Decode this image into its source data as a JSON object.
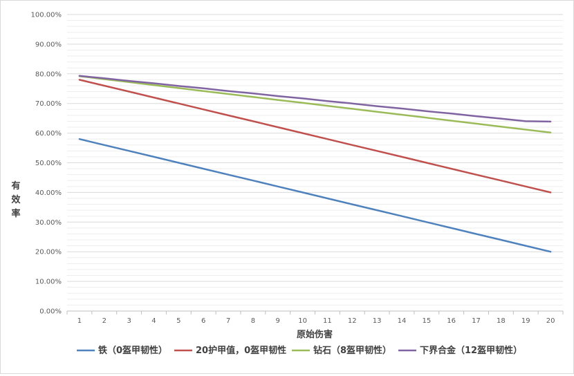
{
  "chart_data": {
    "type": "line",
    "title": "",
    "xlabel": "原始伤害",
    "ylabel": "有效率",
    "ylabel_chars": [
      "有",
      "效",
      "率"
    ],
    "x": [
      1,
      2,
      3,
      4,
      5,
      6,
      7,
      8,
      9,
      10,
      11,
      12,
      13,
      14,
      15,
      16,
      17,
      18,
      19,
      20
    ],
    "x_labels": [
      "1",
      "2",
      "3",
      "4",
      "5",
      "6",
      "7",
      "8",
      "9",
      "10",
      "11",
      "12",
      "13",
      "14",
      "15",
      "16",
      "17",
      "18",
      "19",
      "20"
    ],
    "ylim": [
      0,
      100
    ],
    "y_ticks": [
      0,
      10,
      20,
      30,
      40,
      50,
      60,
      70,
      80,
      90,
      100
    ],
    "y_tick_labels": [
      "0.00%",
      "10.00%",
      "20.00%",
      "30.00%",
      "40.00%",
      "50.00%",
      "60.00%",
      "70.00%",
      "80.00%",
      "90.00%",
      "100.00%"
    ],
    "grid": true,
    "legend_position": "bottom",
    "series": [
      {
        "name": "铁（0盔甲韧性）",
        "color": "#4f81bd",
        "values": [
          58,
          56,
          54,
          52,
          50,
          48,
          46,
          44,
          42,
          40,
          38,
          36,
          34,
          32,
          30,
          28,
          26,
          24,
          22,
          20
        ]
      },
      {
        "name": "20护甲值，0盔甲韧性",
        "color": "#c0504d",
        "values": [
          78,
          76,
          74,
          72,
          70,
          68,
          66,
          64,
          62,
          60,
          58,
          56,
          54,
          52,
          50,
          48,
          46,
          44,
          42,
          40
        ]
      },
      {
        "name": "钻石（8盔甲韧性）",
        "color": "#9bbb59",
        "values": [
          79.2,
          78.2,
          77.2,
          76.2,
          75.2,
          74.2,
          73.2,
          72.2,
          71.2,
          70.2,
          69.2,
          68.2,
          67.2,
          66.2,
          65.2,
          64.2,
          63.2,
          62.2,
          61.2,
          60.2
        ]
      },
      {
        "name": "下界合金（12盔甲韧性）",
        "color": "#8064a2",
        "values": [
          79.3,
          78.5,
          77.6,
          76.8,
          75.9,
          75.1,
          74.2,
          73.4,
          72.5,
          71.7,
          70.8,
          70.0,
          69.1,
          68.3,
          67.4,
          66.6,
          65.7,
          64.9,
          64.0,
          63.9
        ]
      }
    ]
  }
}
